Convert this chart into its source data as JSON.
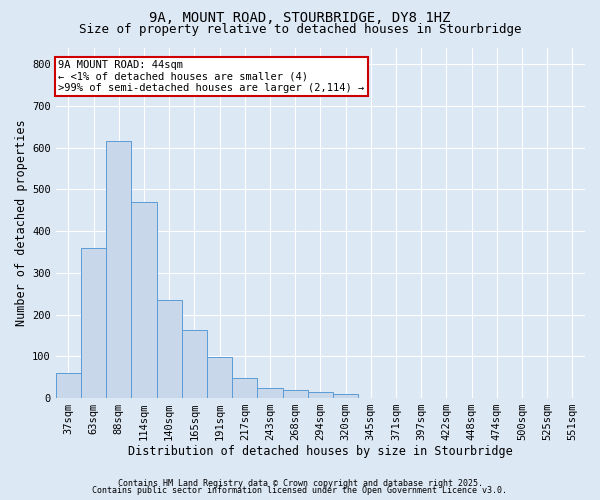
{
  "title_line1": "9A, MOUNT ROAD, STOURBRIDGE, DY8 1HZ",
  "title_line2": "Size of property relative to detached houses in Stourbridge",
  "xlabel": "Distribution of detached houses by size in Stourbridge",
  "ylabel": "Number of detached properties",
  "categories": [
    "37sqm",
    "63sqm",
    "88sqm",
    "114sqm",
    "140sqm",
    "165sqm",
    "191sqm",
    "217sqm",
    "243sqm",
    "268sqm",
    "294sqm",
    "320sqm",
    "345sqm",
    "371sqm",
    "397sqm",
    "422sqm",
    "448sqm",
    "474sqm",
    "500sqm",
    "525sqm",
    "551sqm"
  ],
  "values": [
    60,
    360,
    615,
    470,
    235,
    163,
    98,
    47,
    25,
    20,
    15,
    10,
    1,
    0,
    0,
    0,
    1,
    0,
    0,
    0,
    0
  ],
  "bar_color": "#c8d8ea",
  "bar_edge_color": "#5b9bd5",
  "annotation_box_facecolor": "#ffffff",
  "annotation_border_color": "#cc0000",
  "annotation_text_line1": "9A MOUNT ROAD: 44sqm",
  "annotation_text_line2": "← <1% of detached houses are smaller (4)",
  "annotation_text_line3": ">99% of semi-detached houses are larger (2,114) →",
  "ylim": [
    0,
    840
  ],
  "yticks": [
    0,
    100,
    200,
    300,
    400,
    500,
    600,
    700,
    800
  ],
  "bg_color": "#dde8f5",
  "plot_bg_color": "#dde8f5",
  "grid_color": "#ffffff",
  "footnote1": "Contains HM Land Registry data © Crown copyright and database right 2025.",
  "footnote2": "Contains public sector information licensed under the Open Government Licence v3.0.",
  "title_fontsize": 10,
  "subtitle_fontsize": 9,
  "axis_label_fontsize": 8.5,
  "tick_fontsize": 7.5,
  "annotation_fontsize": 7.5,
  "footnote_fontsize": 6
}
